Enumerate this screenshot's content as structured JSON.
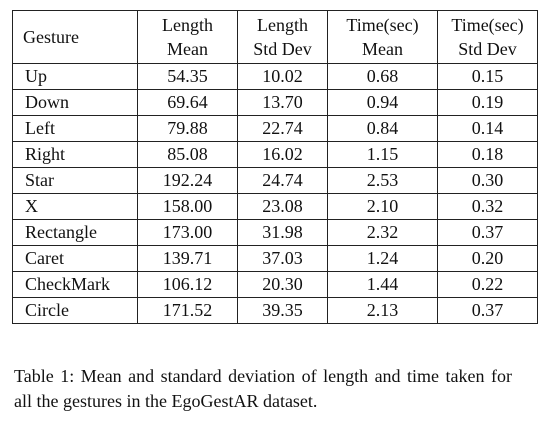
{
  "table": {
    "headers": [
      {
        "line1": "Gesture",
        "line2": ""
      },
      {
        "line1": "Length",
        "line2": "Mean"
      },
      {
        "line1": "Length",
        "line2": "Std Dev"
      },
      {
        "line1": "Time(sec)",
        "line2": "Mean"
      },
      {
        "line1": "Time(sec)",
        "line2": "Std Dev"
      }
    ],
    "rows": [
      [
        "Up",
        "54.35",
        "10.02",
        "0.68",
        "0.15"
      ],
      [
        "Down",
        "69.64",
        "13.70",
        "0.94",
        "0.19"
      ],
      [
        "Left",
        "79.88",
        "22.74",
        "0.84",
        "0.14"
      ],
      [
        "Right",
        "85.08",
        "16.02",
        "1.15",
        "0.18"
      ],
      [
        "Star",
        "192.24",
        "24.74",
        "2.53",
        "0.30"
      ],
      [
        "X",
        "158.00",
        "23.08",
        "2.10",
        "0.32"
      ],
      [
        "Rectangle",
        "173.00",
        "31.98",
        "2.32",
        "0.37"
      ],
      [
        "Caret",
        "139.71",
        "37.03",
        "1.24",
        "0.20"
      ],
      [
        "CheckMark",
        "106.12",
        "20.30",
        "1.44",
        "0.22"
      ],
      [
        "Circle",
        "171.52",
        "39.35",
        "2.13",
        "0.37"
      ]
    ]
  },
  "caption": "Table 1: Mean and standard deviation of length and time taken for all the gestures in the EgoGestAR dataset."
}
